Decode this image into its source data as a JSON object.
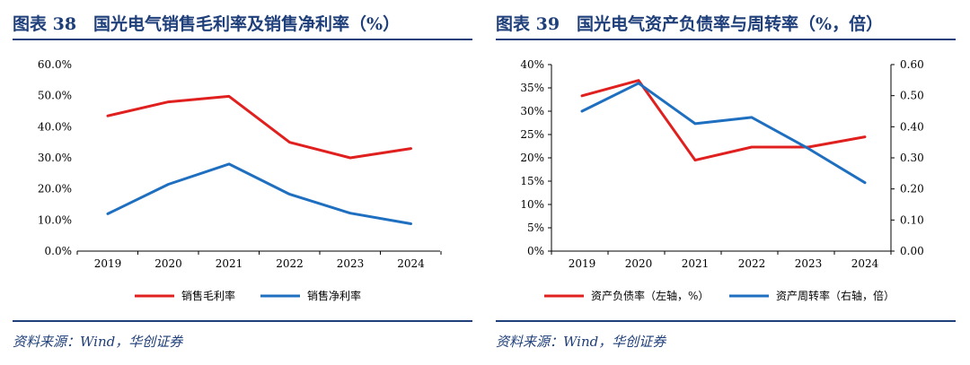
{
  "figures": [
    {
      "title": "图表 38　国光电气销售毛利率及销售净利率（%）",
      "source": "资料来源：Wind，华创证券",
      "chart_data": {
        "type": "line",
        "x": [
          "2019",
          "2020",
          "2021",
          "2022",
          "2023",
          "2024"
        ],
        "ylim": [
          0,
          60
        ],
        "yticks": [
          "0.0%",
          "10.0%",
          "20.0%",
          "30.0%",
          "40.0%",
          "50.0%",
          "60.0%"
        ],
        "series": [
          {
            "name": "销售毛利率",
            "color": "#e0201f",
            "values": [
              43.5,
              48.0,
              49.8,
              35.0,
              30.0,
              33.0
            ]
          },
          {
            "name": "销售净利率",
            "color": "#1f6fc0",
            "values": [
              12.0,
              21.5,
              28.0,
              18.3,
              12.2,
              8.8
            ]
          }
        ],
        "grid": false,
        "legend": "bottom"
      }
    },
    {
      "title": "图表 39　国光电气资产负债率与周转率（%，倍）",
      "source": "资料来源：Wind，华创证券",
      "chart_data": {
        "type": "line",
        "x": [
          "2019",
          "2020",
          "2021",
          "2022",
          "2023",
          "2024"
        ],
        "ylim": [
          0,
          40
        ],
        "y2lim": [
          0,
          0.6
        ],
        "yticks": [
          "0%",
          "5%",
          "10%",
          "15%",
          "20%",
          "25%",
          "30%",
          "35%",
          "40%"
        ],
        "y2ticks": [
          "0.00",
          "0.10",
          "0.20",
          "0.30",
          "0.40",
          "0.50",
          "0.60"
        ],
        "series": [
          {
            "name": "资产负债率（左轴，%）",
            "axis": "left",
            "color": "#e0201f",
            "values": [
              33.3,
              36.6,
              19.5,
              22.3,
              22.3,
              24.5
            ]
          },
          {
            "name": "资产周转率（右轴，倍）",
            "axis": "right",
            "color": "#1f6fc0",
            "values": [
              0.45,
              0.54,
              0.41,
              0.43,
              0.33,
              0.22
            ]
          }
        ],
        "grid": false,
        "legend": "bottom"
      }
    }
  ]
}
